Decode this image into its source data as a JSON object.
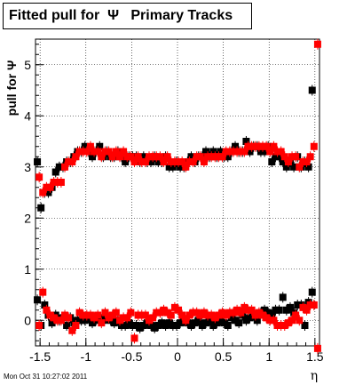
{
  "title": "Fitted pull for  Ψ   Primary Tracks",
  "timestamp": "Mon Oct 31 10:27:02 2011",
  "chart_data": {
    "type": "scatter",
    "title": "Fitted pull for  Ψ   Primary Tracks",
    "xlabel": "η",
    "ylabel": "pull for Ψ",
    "xlim": [
      -1.55,
      1.55
    ],
    "ylim": [
      -0.5,
      5.5
    ],
    "xticks": [
      -1.5,
      -1,
      -0.5,
      0,
      0.5,
      1,
      1.5
    ],
    "xtick_labels": [
      "-1.5",
      "-1",
      "-0.5",
      "0",
      "0.5",
      "1",
      "1.5"
    ],
    "yticks": [
      0,
      1,
      2,
      3,
      4,
      5
    ],
    "ytick_labels": [
      "0",
      "1",
      "2",
      "3",
      "4",
      "5"
    ],
    "grid": true,
    "series": [
      {
        "color": "#000000",
        "marker": "square",
        "x": [
          -1.53,
          -1.49,
          -1.45,
          -1.41,
          -1.37,
          -1.33,
          -1.29,
          -1.25,
          -1.21,
          -1.17,
          -1.13,
          -1.09,
          -1.05,
          -1.01,
          -0.97,
          -0.93,
          -0.89,
          -0.85,
          -0.81,
          -0.77,
          -0.73,
          -0.69,
          -0.65,
          -0.61,
          -0.57,
          -0.53,
          -0.49,
          -0.45,
          -0.41,
          -0.37,
          -0.33,
          -0.29,
          -0.25,
          -0.21,
          -0.17,
          -0.13,
          -0.09,
          -0.05,
          -0.01,
          0.03,
          0.07,
          0.11,
          0.15,
          0.19,
          0.23,
          0.27,
          0.31,
          0.35,
          0.39,
          0.43,
          0.47,
          0.51,
          0.55,
          0.59,
          0.63,
          0.67,
          0.71,
          0.75,
          0.79,
          0.83,
          0.87,
          0.91,
          0.95,
          0.99,
          1.03,
          1.07,
          1.11,
          1.15,
          1.19,
          1.23,
          1.27,
          1.31,
          1.35,
          1.39,
          1.43,
          1.47,
          1.51
        ],
        "y": [
          3.1,
          2.2,
          2.5,
          2.5,
          2.6,
          2.9,
          3.0,
          3.0,
          3.1,
          3.1,
          3.2,
          3.3,
          3.3,
          3.4,
          3.3,
          3.2,
          3.3,
          3.4,
          3.2,
          3.3,
          3.2,
          3.2,
          3.3,
          3.2,
          3.1,
          3.2,
          3.2,
          3.2,
          3.1,
          3.2,
          3.1,
          3.1,
          3.2,
          3.1,
          3.1,
          3.2,
          3.0,
          3.0,
          3.1,
          3.0,
          3.0,
          3.1,
          3.2,
          3.1,
          3.2,
          3.2,
          3.3,
          3.2,
          3.3,
          3.2,
          3.3,
          3.2,
          3.2,
          3.3,
          3.4,
          3.3,
          3.3,
          3.5,
          3.3,
          3.4,
          3.4,
          3.3,
          3.3,
          3.4,
          3.1,
          3.2,
          3.2,
          3.1,
          3.0,
          3.1,
          3.0,
          3.2,
          3.0,
          3.1,
          3.0,
          4.5,
          null
        ],
        "y2": [
          0.4,
          -0.1,
          0.3,
          0.1,
          -0.05,
          0.1,
          0.0,
          0.05,
          -0.1,
          0.05,
          -0.05,
          0.0,
          0.0,
          0.0,
          0.05,
          -0.05,
          0.0,
          0.05,
          0.0,
          0.05,
          0.0,
          -0.05,
          0.0,
          -0.1,
          -0.1,
          -0.05,
          -0.1,
          -0.1,
          -0.15,
          -0.1,
          -0.05,
          -0.1,
          -0.15,
          -0.1,
          -0.05,
          -0.1,
          -0.05,
          -0.1,
          -0.1,
          -0.05,
          0.0,
          -0.05,
          -0.1,
          -0.05,
          0.0,
          -0.1,
          -0.05,
          0.0,
          -0.1,
          -0.05,
          0.0,
          -0.05,
          -0.1,
          0.05,
          0.0,
          -0.05,
          0.1,
          0.0,
          0.05,
          0.1,
          0.0,
          0.15,
          0.2,
          0.15,
          0.1,
          0.2,
          0.2,
          0.45,
          0.2,
          0.25,
          0.15,
          0.3,
          0.3,
          -0.1,
          0.35,
          0.55,
          null
        ]
      },
      {
        "color": "#ff0000",
        "marker": "square",
        "x": [
          -1.51,
          -1.47,
          -1.43,
          -1.39,
          -1.35,
          -1.31,
          -1.27,
          -1.23,
          -1.19,
          -1.15,
          -1.11,
          -1.07,
          -1.03,
          -0.99,
          -0.95,
          -0.91,
          -0.87,
          -0.83,
          -0.79,
          -0.75,
          -0.71,
          -0.67,
          -0.63,
          -0.59,
          -0.55,
          -0.51,
          -0.47,
          -0.43,
          -0.39,
          -0.35,
          -0.31,
          -0.27,
          -0.23,
          -0.19,
          -0.15,
          -0.11,
          -0.07,
          -0.03,
          0.01,
          0.05,
          0.09,
          0.13,
          0.17,
          0.21,
          0.25,
          0.29,
          0.33,
          0.37,
          0.41,
          0.45,
          0.49,
          0.53,
          0.57,
          0.61,
          0.65,
          0.69,
          0.73,
          0.77,
          0.81,
          0.85,
          0.89,
          0.93,
          0.97,
          1.01,
          1.05,
          1.09,
          1.13,
          1.17,
          1.21,
          1.25,
          1.29,
          1.33,
          1.37,
          1.41,
          1.45,
          1.49,
          1.53
        ],
        "y": [
          2.8,
          2.5,
          2.6,
          2.6,
          2.7,
          2.7,
          2.7,
          3.0,
          3.1,
          3.1,
          3.2,
          3.3,
          3.3,
          3.3,
          3.4,
          3.3,
          3.3,
          3.2,
          3.3,
          3.3,
          3.2,
          3.3,
          3.2,
          3.3,
          3.2,
          3.2,
          3.1,
          3.2,
          3.1,
          3.1,
          3.2,
          3.2,
          3.2,
          3.2,
          3.1,
          3.2,
          3.1,
          3.1,
          3.1,
          3.1,
          3.0,
          3.1,
          3.1,
          3.2,
          3.2,
          3.1,
          3.2,
          3.2,
          3.2,
          3.2,
          3.2,
          3.3,
          3.3,
          3.3,
          3.3,
          3.3,
          3.3,
          3.4,
          3.4,
          3.4,
          3.4,
          3.4,
          3.4,
          3.3,
          3.4,
          3.3,
          3.3,
          3.2,
          3.1,
          3.2,
          3.2,
          3.0,
          3.1,
          3.1,
          3.2,
          3.4,
          5.4
        ],
        "y2": [
          -0.1,
          0.55,
          0.2,
          0.1,
          0.05,
          0.0,
          0.0,
          0.1,
          0.05,
          -0.2,
          -0.1,
          0.15,
          0.1,
          0.1,
          0.1,
          0.05,
          0.1,
          -0.05,
          0.15,
          0.05,
          0.1,
          0.15,
          0.0,
          0.05,
          0.05,
          0.15,
          -0.35,
          0.1,
          0.1,
          0.1,
          0.0,
          0.05,
          0.15,
          0.15,
          0.2,
          0.15,
          0.1,
          0.25,
          0.2,
          0.1,
          0.0,
          0.1,
          0.15,
          0.15,
          0.1,
          0.15,
          0.1,
          0.1,
          0.05,
          0.1,
          0.15,
          0.1,
          0.15,
          0.15,
          0.2,
          0.15,
          0.25,
          0.2,
          0.2,
          0.1,
          0.15,
          0.1,
          0.05,
          0.0,
          0.0,
          -0.1,
          -0.1,
          -0.1,
          -0.05,
          0.0,
          0.1,
          0.0,
          0.25,
          0.2,
          0.3,
          0.3,
          -0.55
        ]
      }
    ]
  }
}
